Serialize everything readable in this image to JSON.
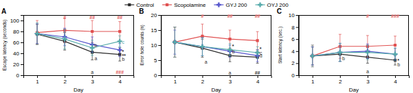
{
  "chart_data": [
    {
      "type": "line",
      "title": "A",
      "xlabel": "Day",
      "ylabel": "Escape latency (seconds)",
      "x": [
        1,
        2,
        3,
        4
      ],
      "xlim": [
        0.5,
        4.5
      ],
      "xticks": [
        1,
        2,
        3,
        4
      ],
      "ylim": [
        0,
        110
      ],
      "yticks": [
        0,
        20,
        40,
        60,
        80,
        100
      ],
      "grid": false,
      "legend": "top",
      "series": [
        {
          "name": "Control",
          "color": "#2b2b2b",
          "marker": "square",
          "values": [
            75,
            62,
            42,
            38
          ],
          "errors": [
            18,
            16,
            14,
            12
          ]
        },
        {
          "name": "Scopolamine",
          "color": "#e05050",
          "marker": "square",
          "values": [
            78,
            82,
            80,
            80
          ],
          "errors": [
            22,
            22,
            20,
            18
          ]
        },
        {
          "name": "GYJ 200",
          "color": "#5555cc",
          "marker": "plus",
          "values": [
            76,
            70,
            56,
            46
          ],
          "errors": [
            18,
            16,
            14,
            12
          ]
        },
        {
          "name": "OYJ 200",
          "color": "#55aaaa",
          "marker": "plus",
          "values": [
            76,
            66,
            50,
            62
          ],
          "errors": [
            20,
            18,
            14,
            10
          ]
        }
      ],
      "annotations": [
        {
          "x": 2.0,
          "y": 103,
          "text": "#",
          "align": "center",
          "color": "#e05050"
        },
        {
          "x": 3.0,
          "y": 103,
          "text": "##",
          "align": "center",
          "color": "#e05050"
        },
        {
          "x": 4.0,
          "y": 103,
          "text": "##",
          "align": "center",
          "color": "#e05050"
        },
        {
          "x": 4.08,
          "y": 58,
          "text": "c",
          "align": "left",
          "color": "#55aaaa"
        },
        {
          "x": 4.08,
          "y": 40,
          "text": "*",
          "align": "left",
          "color": "#2b2b2b"
        },
        {
          "x": 4.08,
          "y": 33,
          "text": "**",
          "align": "left",
          "color": "#2b2b2b"
        },
        {
          "x": 4.08,
          "y": 26,
          "text": "b",
          "align": "left",
          "color": "#2b2b2b"
        },
        {
          "x": 3.08,
          "y": 51,
          "text": "b",
          "align": "left",
          "color": "#2b2b2b"
        },
        {
          "x": 3.08,
          "y": 28,
          "text": "a",
          "align": "left",
          "color": "#2b2b2b"
        },
        {
          "x": 4.0,
          "y": 3,
          "text": "###",
          "align": "center",
          "color": "#e05050"
        },
        {
          "x": 3.0,
          "y": 3,
          "text": "a",
          "align": "center",
          "color": "#2b2b2b"
        }
      ]
    },
    {
      "type": "line",
      "title": "B",
      "xlabel": "Day",
      "ylabel": "Error hole counts (n)",
      "x": [
        1,
        2,
        3,
        4
      ],
      "xlim": [
        0.5,
        4.5
      ],
      "xticks": [
        1,
        2,
        3,
        4
      ],
      "ylim": [
        0,
        20
      ],
      "yticks": [
        0,
        5,
        10,
        15,
        20
      ],
      "grid": false,
      "series": [
        {
          "name": "Control",
          "color": "#2b2b2b",
          "marker": "square",
          "values": [
            11,
            9,
            6.5,
            6
          ],
          "errors": [
            5,
            3,
            2,
            2
          ]
        },
        {
          "name": "Scopolamine",
          "color": "#e05050",
          "marker": "square",
          "values": [
            11,
            13,
            12,
            11.5
          ],
          "errors": [
            5,
            4,
            3,
            3
          ]
        },
        {
          "name": "GYJ 200",
          "color": "#5555cc",
          "marker": "plus",
          "values": [
            11,
            9.5,
            8,
            6.5
          ],
          "errors": [
            4,
            3,
            2,
            2
          ]
        },
        {
          "name": "OYJ 200",
          "color": "#55aaaa",
          "marker": "plus",
          "values": [
            11,
            9.5,
            8.5,
            7.5
          ],
          "errors": [
            5,
            3,
            2,
            2
          ]
        }
      ],
      "annotations": [
        {
          "x": 2.0,
          "y": 19.2,
          "text": "#",
          "align": "center",
          "color": "#e05050"
        },
        {
          "x": 3.0,
          "y": 19.2,
          "text": "##",
          "align": "center",
          "color": "#e05050"
        },
        {
          "x": 4.0,
          "y": 19.2,
          "text": "##",
          "align": "center",
          "color": "#e05050"
        },
        {
          "x": 2.08,
          "y": 3.8,
          "text": "a",
          "align": "left",
          "color": "#2b2b2b"
        },
        {
          "x": 3.0,
          "y": 0.3,
          "text": "a",
          "align": "center",
          "color": "#2b2b2b"
        },
        {
          "x": 4.0,
          "y": 0.3,
          "text": "##",
          "align": "center",
          "color": "#2b2b2b"
        },
        {
          "x": 3.08,
          "y": 7.2,
          "text": "b",
          "align": "left",
          "color": "#2b2b2b"
        },
        {
          "x": 3.08,
          "y": 9.2,
          "text": "*",
          "align": "left",
          "color": "#2b2b2b"
        },
        {
          "x": 4.08,
          "y": 6.8,
          "text": "c",
          "align": "left",
          "color": "#2b2b2b"
        },
        {
          "x": 4.08,
          "y": 5.8,
          "text": "d",
          "align": "left",
          "color": "#2b2b2b"
        },
        {
          "x": 4.08,
          "y": 8.2,
          "text": "*",
          "align": "left",
          "color": "#2b2b2b"
        }
      ]
    },
    {
      "type": "line",
      "title": "C",
      "xlabel": "Day",
      "ylabel": "Start latency (sec.)",
      "x": [
        1,
        2,
        3,
        4
      ],
      "xlim": [
        0.5,
        4.5
      ],
      "xticks": [
        1,
        2,
        3,
        4
      ],
      "ylim": [
        0,
        10
      ],
      "yticks": [
        0,
        2,
        4,
        6,
        8,
        10
      ],
      "grid": false,
      "series": [
        {
          "name": "Control",
          "color": "#2b2b2b",
          "marker": "square",
          "values": [
            3.2,
            3.5,
            3.0,
            2.5
          ],
          "errors": [
            1.5,
            1.2,
            1.0,
            0.8
          ]
        },
        {
          "name": "Scopolamine",
          "color": "#e05050",
          "marker": "square",
          "values": [
            3.2,
            4.8,
            4.8,
            5.0
          ],
          "errors": [
            1.8,
            2.0,
            1.8,
            1.5
          ]
        },
        {
          "name": "GYJ 200",
          "color": "#5555cc",
          "marker": "plus",
          "values": [
            3.2,
            3.8,
            4.0,
            3.5
          ],
          "errors": [
            1.5,
            1.5,
            1.2,
            1.0
          ]
        },
        {
          "name": "OYJ 200",
          "color": "#55aaaa",
          "marker": "plus",
          "values": [
            3.2,
            3.8,
            3.8,
            3.5
          ],
          "errors": [
            1.8,
            1.5,
            1.2,
            1.0
          ]
        }
      ],
      "annotations": [
        {
          "x": 3.0,
          "y": 9.5,
          "text": "#",
          "align": "center",
          "color": "#e05050"
        },
        {
          "x": 4.0,
          "y": 9.5,
          "text": "###",
          "align": "center",
          "color": "#e05050"
        },
        {
          "x": 2.08,
          "y": 2.5,
          "text": "b",
          "align": "left",
          "color": "#2b2b2b"
        },
        {
          "x": 3.0,
          "y": 0.3,
          "text": "a",
          "align": "center",
          "color": "#2b2b2b"
        },
        {
          "x": 4.08,
          "y": 2.2,
          "text": "*",
          "align": "left",
          "color": "#2b2b2b"
        },
        {
          "x": 4.08,
          "y": 1.5,
          "text": "b",
          "align": "left",
          "color": "#2b2b2b"
        }
      ]
    }
  ]
}
